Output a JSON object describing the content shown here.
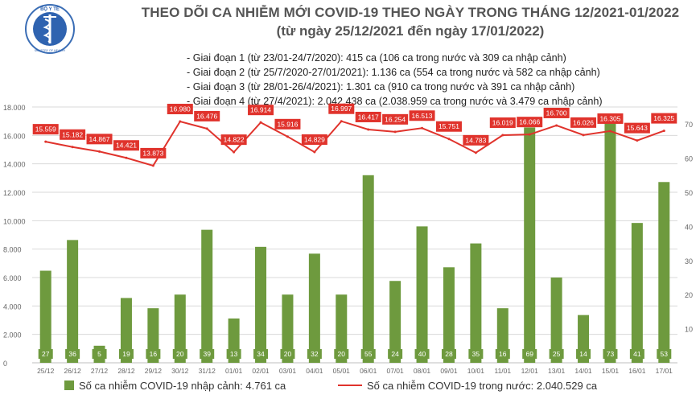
{
  "header": {
    "title": "THEO DÕI CA NHIỄM MỚI COVID-19 THEO NGÀY TRONG THÁNG 12/2021-01/2022",
    "subtitle": "(từ ngày 25/12/2021 đến ngày 17/01/2022)",
    "logo_top_text": "BỘ Y TẾ",
    "logo_bottom_text": "MINISTRY OF HEALTH"
  },
  "phases": [
    "- Giai đoạn 1 (từ 23/01-24/7/2020): 415 ca (106 ca trong nước và 309 ca nhập cảnh)",
    "- Giai đoạn 2 (từ 25/7/2020-27/01/2021): 1.136 ca (554 ca trong nước và 582 ca nhập cảnh)",
    "- Giai đoạn 3 (từ 28/01-26/4/2021): 1.301 ca (910 ca trong nước và 391 ca nhập cảnh)",
    "- Giai đoạn 4 (từ 27/4/2021): 2.042.438 ca (2.038.959 ca trong nước và 3.479 ca nhập cảnh)"
  ],
  "legend": {
    "bar_label": "Số ca nhiễm COVID-19 nhập cảnh: 4.761 ca",
    "line_label": "Số ca nhiễm COVID-19 trong nước: 2.040.529 ca"
  },
  "colors": {
    "bar": "#6e9a3e",
    "bar_label_bg": "#6e9a3e",
    "line": "#e0332c",
    "line_label_bg": "#e0332c",
    "grid": "#d9d9d9",
    "axis_text": "#666666"
  },
  "chart_data": {
    "type": "bar",
    "categories": [
      "25/12",
      "26/12",
      "27/12",
      "28/12",
      "29/12",
      "30/12",
      "31/12",
      "01/01",
      "02/01",
      "03/01",
      "04/01",
      "05/01",
      "06/01",
      "07/01",
      "08/01",
      "09/01",
      "10/01",
      "11/01",
      "12/01",
      "13/01",
      "14/01",
      "15/01",
      "16/01",
      "17/01"
    ],
    "series": [
      {
        "name": "Số ca nhiễm COVID-19 trong nước",
        "type": "line",
        "axis": "left",
        "values": [
          15559,
          15182,
          14867,
          14421,
          13873,
          16980,
          16476,
          14822,
          16914,
          15916,
          14829,
          16997,
          16417,
          16254,
          16513,
          15751,
          14783,
          16019,
          16066,
          16700,
          16026,
          16305,
          15643,
          16325
        ],
        "labels": [
          "15.559",
          "15.182",
          "14.867",
          "14.421",
          "13.873",
          "16.980",
          "16.476",
          "14.822",
          "16.914",
          "15.916",
          "14.829",
          "16.997",
          "16.417",
          "16.254",
          "16.513",
          "15.751",
          "14.783",
          "16.019",
          "16.066",
          "16.700",
          "16.026",
          "16.305",
          "15.643",
          "16.325"
        ]
      },
      {
        "name": "Số ca nhiễm COVID-19 nhập cảnh",
        "type": "bar",
        "axis": "right",
        "values": [
          27,
          36,
          5,
          19,
          16,
          20,
          39,
          13,
          34,
          20,
          32,
          20,
          55,
          24,
          40,
          28,
          35,
          16,
          69,
          25,
          14,
          73,
          41,
          53
        ],
        "labels": [
          "27",
          "36",
          "5",
          "19",
          "16",
          "20",
          "39",
          "13",
          "34",
          "20",
          "32",
          "20",
          "55",
          "24",
          "40",
          "28",
          "35",
          "16",
          "69",
          "25",
          "14",
          "73",
          "41",
          "53"
        ]
      }
    ],
    "y_left": {
      "min": 0,
      "max": 18000,
      "ticks": [
        0,
        2000,
        4000,
        6000,
        8000,
        10000,
        12000,
        14000,
        16000,
        18000
      ],
      "tick_labels": [
        "0",
        "2.000",
        "4.000",
        "6.000",
        "8.000",
        "10.000",
        "12.000",
        "14.000",
        "16.000",
        "18.000"
      ]
    },
    "y_right": {
      "min": 0,
      "max": 75,
      "ticks": [
        0,
        10,
        20,
        30,
        40,
        50,
        60,
        70
      ],
      "tick_labels": [
        "0",
        "10",
        "20",
        "30",
        "40",
        "50",
        "60",
        "70"
      ]
    },
    "grid": true,
    "legend_position": "bottom"
  }
}
